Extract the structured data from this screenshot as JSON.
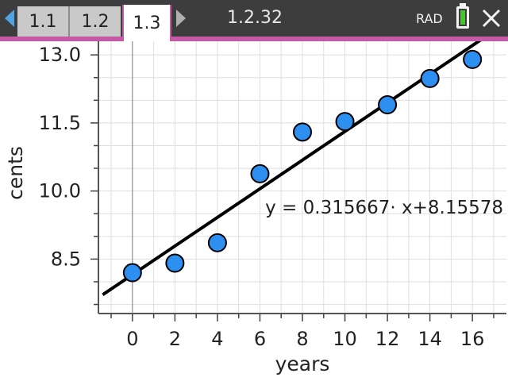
{
  "statusbar": {
    "tabs": [
      {
        "label": "1.1",
        "active": false
      },
      {
        "label": "1.2",
        "active": false
      },
      {
        "label": "1.3",
        "active": true
      }
    ],
    "document_title": "1.2.32",
    "angle_mode": "RAD",
    "battery_icon": "battery-icon",
    "close_icon": "close-icon",
    "colors": {
      "bar": "#3d3d3d",
      "accent": "#c45aa5",
      "battery": "#49c22f",
      "nav_arrow": "#4ea3e0"
    }
  },
  "chart_data": {
    "type": "scatter",
    "xlabel": "years",
    "ylabel": "cents",
    "xlim": [
      -1.6,
      17.6
    ],
    "ylim": [
      7.3,
      13.3
    ],
    "x_ticks": [
      0,
      2,
      4,
      6,
      8,
      10,
      12,
      14,
      16
    ],
    "y_ticks": [
      8.5,
      10.0,
      11.5,
      13.0
    ],
    "x_tick_labels": [
      "0",
      "2",
      "4",
      "6",
      "8",
      "10",
      "12",
      "14",
      "16"
    ],
    "y_tick_labels": [
      "8.5",
      "10.0",
      "11.5",
      "13.0"
    ],
    "grid": true,
    "point_color": "#2d8ff0",
    "series": [
      {
        "x": [
          0,
          2,
          4,
          6,
          8,
          10,
          12,
          14,
          16
        ],
        "y": [
          8.2,
          8.41,
          8.86,
          10.38,
          11.3,
          11.53,
          11.9,
          12.48,
          12.9
        ]
      }
    ],
    "regression": {
      "slope": 0.315667,
      "intercept": 8.15578,
      "equation": "y = 0.315667· x+8.15578"
    }
  }
}
